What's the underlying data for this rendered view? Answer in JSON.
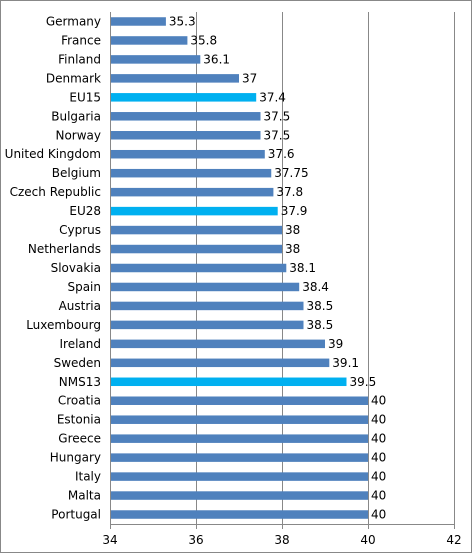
{
  "chart_data": {
    "type": "bar",
    "orientation": "horizontal",
    "categories": [
      "Germany",
      "France",
      "Finland",
      "Denmark",
      "EU15",
      "Bulgaria",
      "Norway",
      "United Kingdom",
      "Belgium",
      "Czech Republic",
      "EU28",
      "Cyprus",
      "Netherlands",
      "Slovakia",
      "Spain",
      "Austria",
      "Luxembourg",
      "Ireland",
      "Sweden",
      "NMS13",
      "Croatia",
      "Estonia",
      "Greece",
      "Hungary",
      "Italy",
      "Malta",
      "Portugal"
    ],
    "values": [
      35.3,
      35.8,
      36.1,
      37,
      37.4,
      37.5,
      37.5,
      37.6,
      37.75,
      37.8,
      37.9,
      38,
      38,
      38.1,
      38.4,
      38.5,
      38.5,
      39,
      39.1,
      39.5,
      40,
      40,
      40,
      40,
      40,
      40,
      40
    ],
    "value_labels": [
      "35.3",
      "35.8",
      "36.1",
      "37",
      "37.4",
      "37.5",
      "37.5",
      "37.6",
      "37.75",
      "37.8",
      "37.9",
      "38",
      "38",
      "38.1",
      "38.4",
      "38.5",
      "38.5",
      "39",
      "39.1",
      "39.5",
      "40",
      "40",
      "40",
      "40",
      "40",
      "40",
      "40"
    ],
    "highlighted": [
      "EU15",
      "EU28",
      "NMS13"
    ],
    "xlim": [
      34,
      42
    ],
    "x_ticks": [
      "34",
      "36",
      "38",
      "40",
      "42"
    ],
    "x_tick_values": [
      34,
      36,
      38,
      40,
      42
    ],
    "grid": "vertical",
    "legend": "none",
    "title": "",
    "xlabel": "",
    "ylabel": "",
    "colors": {
      "bar": "#4F81BD",
      "highlight": "#00B0F0",
      "grid": "#888888",
      "axis": "#888888",
      "text": "#000000",
      "border": "#888888"
    }
  }
}
